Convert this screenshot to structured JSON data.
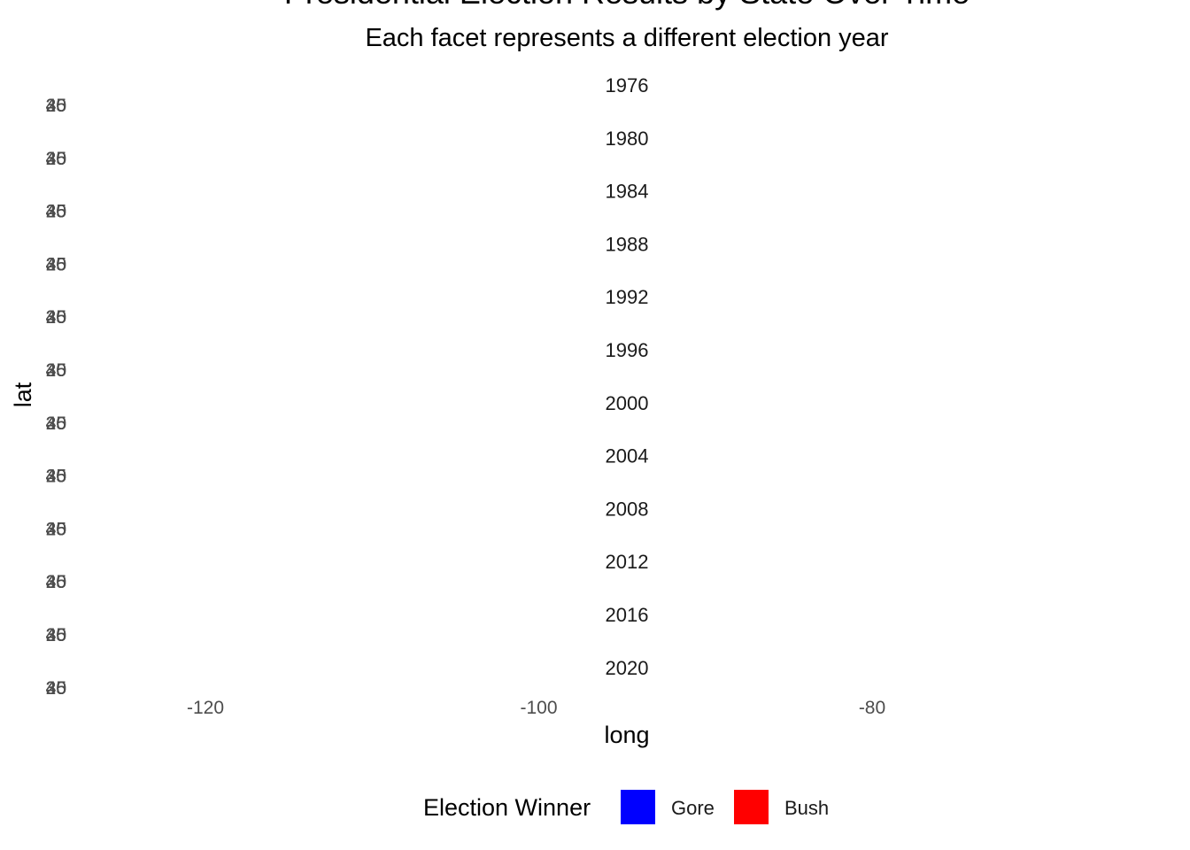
{
  "chart_data": {
    "type": "map",
    "title": "Presidential Election Results by State Over Time",
    "subtitle": "Each facet represents a different election year",
    "xlabel": "long",
    "ylabel": "lat",
    "x_ticks": [
      -120,
      -100,
      -80
    ],
    "y_ticks": [
      25,
      30,
      35,
      40,
      45
    ],
    "facets": [
      "1976",
      "1980",
      "1984",
      "1988",
      "1992",
      "1996",
      "2000",
      "2004",
      "2008",
      "2012",
      "2016",
      "2020"
    ],
    "legend": {
      "title": "Election Winner",
      "position": "bottom",
      "entries": [
        {
          "label": "Gore",
          "color": "#0000ff"
        },
        {
          "label": "Bush",
          "color": "#ff0000"
        }
      ]
    },
    "grid": false,
    "background": "#ffffff"
  }
}
